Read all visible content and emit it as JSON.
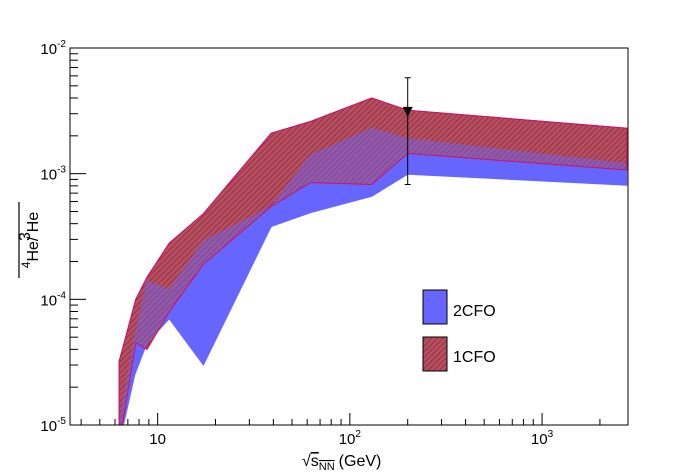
{
  "chart_data": {
    "type": "area",
    "title": "",
    "xlabel": "(GeV)",
    "xlabel_symbol": "s",
    "xlabel_subscript": "NN",
    "ylabel": "He/ He",
    "ylabel_numerator_mass": "4",
    "ylabel_denominator_mass": "3",
    "x_scale": "log",
    "y_scale": "log",
    "xlim": [
      3.5,
      2800
    ],
    "ylim": [
      1e-05,
      0.01
    ],
    "x_ticks": [
      {
        "value": 10,
        "base": "10",
        "exp": ""
      },
      {
        "value": 100,
        "base": "10",
        "exp": "2"
      },
      {
        "value": 1000,
        "base": "10",
        "exp": "3"
      }
    ],
    "y_ticks": [
      {
        "value": 1e-05,
        "base": "10",
        "exp": "-5"
      },
      {
        "value": 0.0001,
        "base": "10",
        "exp": "-4"
      },
      {
        "value": 0.001,
        "base": "10",
        "exp": "-3"
      },
      {
        "value": 0.01,
        "base": "10",
        "exp": "-2"
      }
    ],
    "grid": false,
    "legend_position": "bottom-right",
    "series": [
      {
        "name": "2CFO",
        "color": "#6666ff",
        "fill": "solid",
        "x": [
          6.3,
          7.6,
          8.8,
          11.5,
          17.3,
          39,
          62.4,
          130,
          200,
          2760
        ],
        "upper": [
          1e-05,
          5e-05,
          0.00014,
          0.00012,
          0.00029,
          0.00055,
          0.0014,
          0.0023,
          0.0019,
          0.0012
        ],
        "lower": [
          7e-06,
          2.5e-05,
          4.5e-05,
          7e-05,
          3e-05,
          0.00038,
          0.00049,
          0.00066,
          0.00099,
          0.00081
        ]
      },
      {
        "name": "1CFO",
        "color": "#cc1166",
        "fill": "hatched",
        "x": [
          6.3,
          7.7,
          8.8,
          11.5,
          17.3,
          39,
          62.4,
          130,
          200,
          2760
        ],
        "upper": [
          3.2e-05,
          0.0001,
          0.00015,
          0.00028,
          0.00048,
          0.0021,
          0.0026,
          0.004,
          0.0032,
          0.0023
        ],
        "lower": [
          7e-06,
          4.5e-05,
          4e-05,
          8e-05,
          0.00019,
          0.00055,
          0.00085,
          0.00082,
          0.00145,
          0.00107
        ]
      }
    ],
    "data_points": [
      {
        "x": 200,
        "y": 0.0031,
        "y_low": 0.00082,
        "y_high": 0.0058,
        "marker": "down-triangle"
      }
    ]
  }
}
